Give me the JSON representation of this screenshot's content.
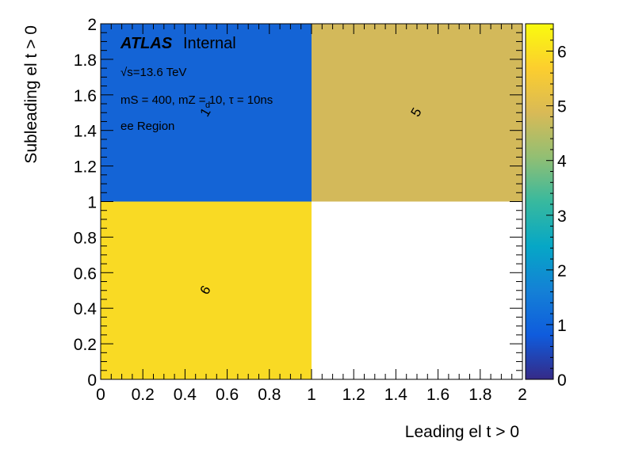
{
  "chart_data": {
    "type": "heatmap",
    "xlabel": "Leading el t > 0",
    "ylabel": "Subleading el t > 0",
    "xlim": [
      0,
      2
    ],
    "ylim": [
      0,
      2
    ],
    "x_ticks": [
      "0",
      "0.2",
      "0.4",
      "0.6",
      "0.8",
      "1",
      "1.2",
      "1.4",
      "1.6",
      "1.8",
      "2"
    ],
    "y_ticks": [
      "0",
      "0.2",
      "0.4",
      "0.6",
      "0.8",
      "1",
      "1.2",
      "1.4",
      "1.6",
      "1.8",
      "2"
    ],
    "x_bins": [
      [
        0,
        1
      ],
      [
        1,
        2
      ]
    ],
    "y_bins": [
      [
        0,
        1
      ],
      [
        1,
        2
      ]
    ],
    "cells": [
      {
        "x_bin": 0,
        "y_bin": 0,
        "value": 6,
        "label": "6",
        "color": "#f9da24"
      },
      {
        "x_bin": 0,
        "y_bin": 1,
        "value": 1,
        "label": "1",
        "color": "#1464d6"
      },
      {
        "x_bin": 1,
        "y_bin": 1,
        "value": 5,
        "label": "5",
        "color": "#d3b95a"
      }
    ],
    "zlim": [
      0,
      6.5
    ],
    "z_ticks": [
      "0",
      "1",
      "2",
      "3",
      "4",
      "5",
      "6"
    ],
    "colorbar_stops": [
      "#352a87",
      "#0f5cdd",
      "#1481d6",
      "#06a7c6",
      "#38b99e",
      "#92bf73",
      "#d9ba56",
      "#fcce2e",
      "#f9fb0e"
    ],
    "annotations": {
      "atlas_bold": "ATLAS",
      "atlas_rest": "Internal",
      "energy": "√s=13.6 TeV",
      "model": "mS = 400, mZ = 10, τ = 10ns",
      "model_subscript": "d",
      "region": "ee Region"
    }
  }
}
